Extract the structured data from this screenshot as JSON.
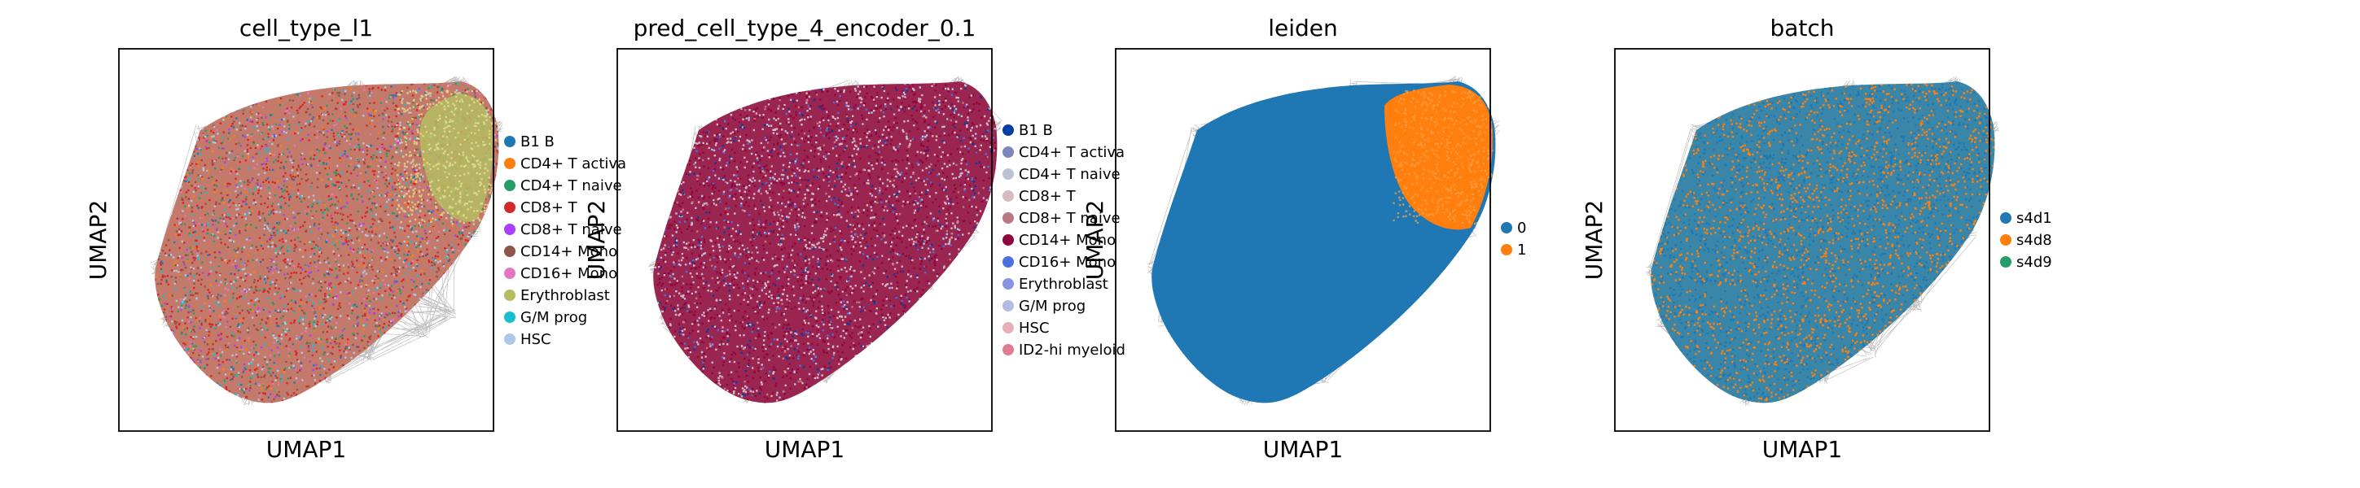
{
  "chart_data": [
    {
      "type": "scatter",
      "title": "cell_type_l1",
      "xlabel": "UMAP1",
      "ylabel": "UMAP2",
      "grid": false,
      "legend": "right",
      "legend_entries": [
        {
          "name": "B1 B",
          "color": "#1f77b4"
        },
        {
          "name": "CD4+ T activa",
          "color": "#ff7f0e"
        },
        {
          "name": "CD4+ T naive",
          "color": "#279e68"
        },
        {
          "name": "CD8+ T",
          "color": "#d62728"
        },
        {
          "name": "CD8+ T naive",
          "color": "#aa40fc"
        },
        {
          "name": "CD14+ Mono",
          "color": "#8c564b"
        },
        {
          "name": "CD16+ Mono",
          "color": "#e377c2"
        },
        {
          "name": "Erythroblast",
          "color": "#b5bd61"
        },
        {
          "name": "G/M prog",
          "color": "#17becf"
        },
        {
          "name": "HSC",
          "color": "#aec7e8"
        }
      ]
    },
    {
      "type": "scatter",
      "title": "pred_cell_type_4_encoder_0.1",
      "xlabel": "UMAP1",
      "ylabel": "UMAP2",
      "grid": false,
      "legend": "right",
      "legend_entries": [
        {
          "name": "B1 B",
          "color": "#023fa5"
        },
        {
          "name": "CD4+ T activa",
          "color": "#7d87b9"
        },
        {
          "name": "CD4+ T naive",
          "color": "#bec1d4"
        },
        {
          "name": "CD8+ T",
          "color": "#d6bcc0"
        },
        {
          "name": "CD8+ T naive",
          "color": "#bb7784"
        },
        {
          "name": "CD14+ Mono",
          "color": "#8e063b"
        },
        {
          "name": "CD16+ Mono",
          "color": "#4a6fe3"
        },
        {
          "name": "Erythroblast",
          "color": "#8595e1"
        },
        {
          "name": "G/M prog",
          "color": "#b5bbe3"
        },
        {
          "name": "HSC",
          "color": "#e6afb9"
        },
        {
          "name": "ID2-hi myeloid",
          "color": "#e07b91"
        }
      ]
    },
    {
      "type": "scatter",
      "title": "leiden",
      "xlabel": "UMAP1",
      "ylabel": "UMAP2",
      "grid": false,
      "legend": "right",
      "legend_entries": [
        {
          "name": "0",
          "color": "#1f77b4"
        },
        {
          "name": "1",
          "color": "#ff7f0e"
        }
      ]
    },
    {
      "type": "scatter",
      "title": "batch",
      "xlabel": "UMAP1",
      "ylabel": "UMAP2",
      "grid": false,
      "legend": "right",
      "legend_entries": [
        {
          "name": "s4d1",
          "color": "#1f77b4"
        },
        {
          "name": "s4d8",
          "color": "#ff7f0e"
        },
        {
          "name": "s4d9",
          "color": "#279e68"
        }
      ]
    }
  ]
}
